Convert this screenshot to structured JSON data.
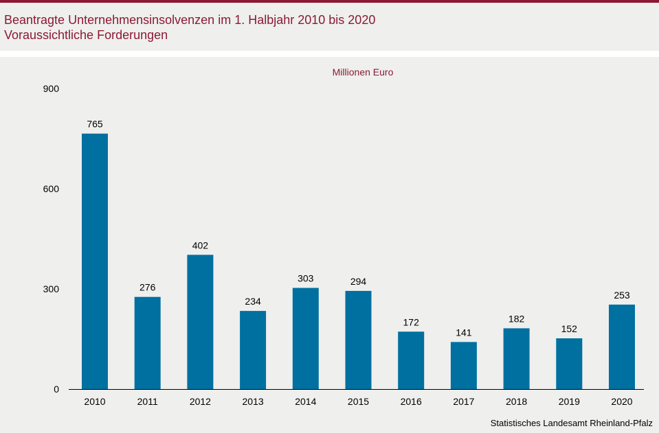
{
  "header": {
    "title": "Beantragte Unternehmensinsolvenzen im 1. Halbjahr 2010 bis 2020",
    "subtitle": "Voraussichtliche Forderungen"
  },
  "source": "Statistisches Landesamt Rheinland-Pfalz",
  "colors": {
    "accent": "#8b1a32",
    "bar": "#0070a0",
    "background": "#efefee"
  },
  "chart_data": {
    "type": "bar",
    "title": "Beantragte Unternehmensinsolvenzen im 1. Halbjahr 2010 bis 2020",
    "subtitle": "Voraussichtliche Forderungen",
    "unit_label": "Millionen  Euro",
    "categories": [
      "2010",
      "2011",
      "2012",
      "2013",
      "2014",
      "2015",
      "2016",
      "2017",
      "2018",
      "2019",
      "2020"
    ],
    "values": [
      765,
      276,
      402,
      234,
      303,
      294,
      172,
      141,
      182,
      152,
      253
    ],
    "value_labels": [
      "765",
      "276",
      "402",
      "234",
      "303",
      "294",
      "172",
      "141",
      "182",
      "152",
      "253"
    ],
    "y_ticks": [
      0,
      300,
      600,
      900
    ],
    "y_tick_labels": [
      "0",
      "300",
      "600",
      "900"
    ],
    "ylim": [
      0,
      900
    ],
    "grid": false,
    "legend": "none"
  }
}
